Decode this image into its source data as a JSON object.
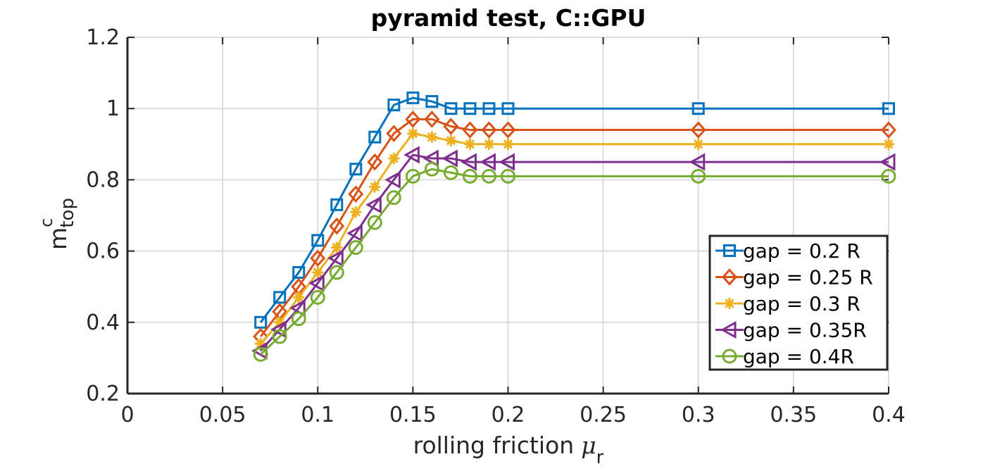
{
  "chart_data": {
    "type": "line",
    "title": "pyramid test, C::GPU",
    "xlabel": "rolling friction",
    "xlabel_symbol": "μ",
    "xlabel_subscript": "r",
    "ylabel": "m",
    "ylabel_superscript": "c",
    "ylabel_subscript": "top",
    "xlim": [
      0,
      0.4
    ],
    "ylim": [
      0.2,
      1.2
    ],
    "xticks": [
      "0",
      "0.05",
      "0.1",
      "0.15",
      "0.2",
      "0.25",
      "0.3",
      "0.35",
      "0.4"
    ],
    "yticks": [
      "0.2",
      "0.4",
      "0.6",
      "0.8",
      "1",
      "1.2"
    ],
    "grid": true,
    "legend_position": "bottom-right",
    "x": [
      0.07,
      0.08,
      0.09,
      0.1,
      0.11,
      0.12,
      0.13,
      0.14,
      0.15,
      0.16,
      0.17,
      0.18,
      0.19,
      0.2,
      0.3,
      0.4
    ],
    "series": [
      {
        "name": "gap = 0.2 R",
        "color": "#0072BD",
        "marker": "square",
        "values": [
          0.4,
          0.47,
          0.54,
          0.63,
          0.73,
          0.83,
          0.92,
          1.01,
          1.03,
          1.02,
          1.0,
          1.0,
          1.0,
          1.0,
          1.0,
          1.0
        ]
      },
      {
        "name": "gap = 0.25 R",
        "color": "#D95319",
        "marker": "diamond",
        "values": [
          0.36,
          0.43,
          0.5,
          0.58,
          0.67,
          0.76,
          0.85,
          0.93,
          0.97,
          0.97,
          0.95,
          0.94,
          0.94,
          0.94,
          0.94,
          0.94
        ]
      },
      {
        "name": "gap = 0.3 R",
        "color": "#EDB120",
        "marker": "asterisk",
        "values": [
          0.34,
          0.4,
          0.47,
          0.54,
          0.61,
          0.71,
          0.78,
          0.86,
          0.93,
          0.92,
          0.91,
          0.9,
          0.9,
          0.9,
          0.9,
          0.9
        ]
      },
      {
        "name": "gap = 0.35R",
        "color": "#7E2F8E",
        "marker": "triangle-left",
        "values": [
          0.32,
          0.38,
          0.44,
          0.51,
          0.58,
          0.65,
          0.73,
          0.8,
          0.87,
          0.86,
          0.86,
          0.85,
          0.85,
          0.85,
          0.85,
          0.85
        ]
      },
      {
        "name": "gap = 0.4R",
        "color": "#77AC30",
        "marker": "circle",
        "values": [
          0.31,
          0.36,
          0.41,
          0.47,
          0.54,
          0.61,
          0.68,
          0.75,
          0.81,
          0.83,
          0.82,
          0.81,
          0.81,
          0.81,
          0.81,
          0.81
        ]
      }
    ]
  }
}
